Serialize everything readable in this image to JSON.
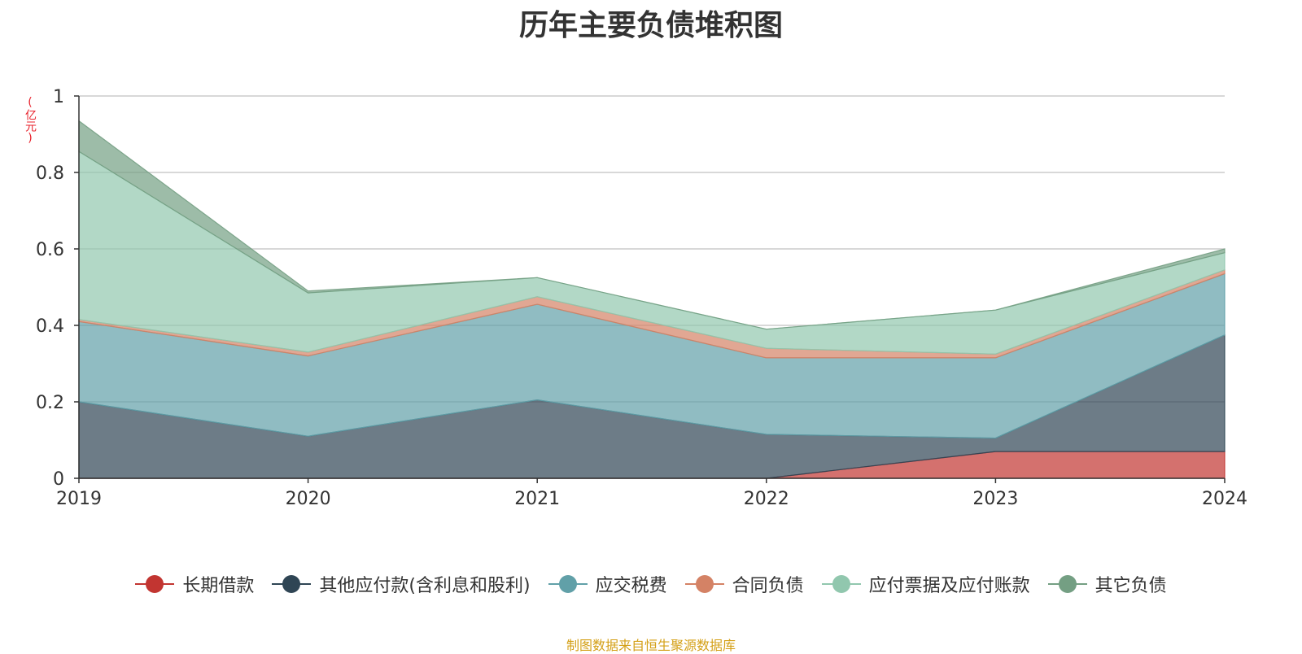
{
  "title": "历年主要负债堆积图",
  "unit_label": "(亿元)",
  "source_note": "制图数据来自恒生聚源数据库",
  "chart_data": {
    "type": "area",
    "stacked": true,
    "categories": [
      "2019",
      "2020",
      "2021",
      "2022",
      "2023",
      "2024"
    ],
    "ylim": [
      0,
      1
    ],
    "yticks": [
      "0",
      "0.2",
      "0.4",
      "0.6",
      "0.8",
      "1"
    ],
    "grid": true,
    "legend_position": "bottom",
    "series": [
      {
        "name": "长期借款",
        "color": "#c23531",
        "values": [
          0,
          0,
          0,
          0,
          0.07,
          0.07
        ]
      },
      {
        "name": "其他应付款(含利息和股利)",
        "color": "#2f4554",
        "values": [
          0.2,
          0.11,
          0.205,
          0.115,
          0.035,
          0.305
        ]
      },
      {
        "name": "应交税费",
        "color": "#61a0a8",
        "values": [
          0.21,
          0.21,
          0.25,
          0.2,
          0.21,
          0.16
        ]
      },
      {
        "name": "合同负债",
        "color": "#d48265",
        "values": [
          0.005,
          0.01,
          0.02,
          0.025,
          0.01,
          0.01
        ]
      },
      {
        "name": "应付票据及应付账款",
        "color": "#91c7ae",
        "values": [
          0.44,
          0.155,
          0.05,
          0.05,
          0.115,
          0.045
        ]
      },
      {
        "name": "其它负债",
        "color": "#749f83",
        "values": [
          0.08,
          0.005,
          0.0,
          0.0,
          0.0,
          0.01
        ]
      }
    ]
  }
}
